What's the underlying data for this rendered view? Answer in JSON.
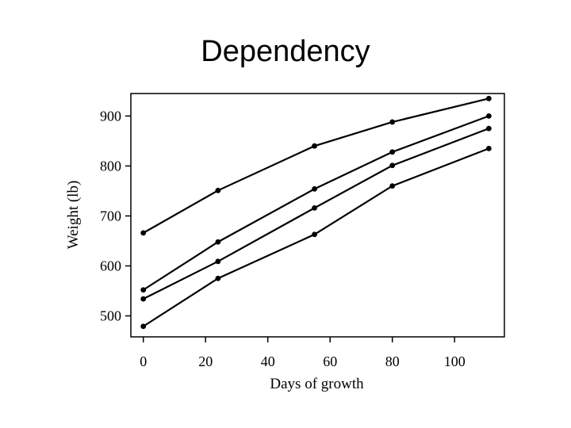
{
  "slide": {
    "title": "Dependency"
  },
  "chart_data": {
    "type": "line",
    "title": "",
    "xlabel": "Days of growth",
    "ylabel": "Weight (lb)",
    "xlim": [
      -4,
      116
    ],
    "ylim": [
      458,
      945
    ],
    "x_ticks": [
      0,
      20,
      40,
      60,
      80,
      100
    ],
    "y_ticks": [
      500,
      600,
      700,
      800,
      900
    ],
    "grid": false,
    "legend": "none",
    "color": "#000000",
    "series": [
      {
        "x": [
          0,
          24,
          55,
          80,
          111
        ],
        "y": [
          666,
          751,
          840,
          888,
          935
        ]
      },
      {
        "x": [
          0,
          24,
          55,
          80,
          111
        ],
        "y": [
          552,
          648,
          754,
          828,
          900
        ]
      },
      {
        "x": [
          0,
          24,
          55,
          80,
          111
        ],
        "y": [
          534,
          609,
          716,
          801,
          875
        ]
      },
      {
        "x": [
          0,
          24,
          55,
          80,
          111
        ],
        "y": [
          479,
          575,
          663,
          760,
          835
        ]
      }
    ]
  }
}
